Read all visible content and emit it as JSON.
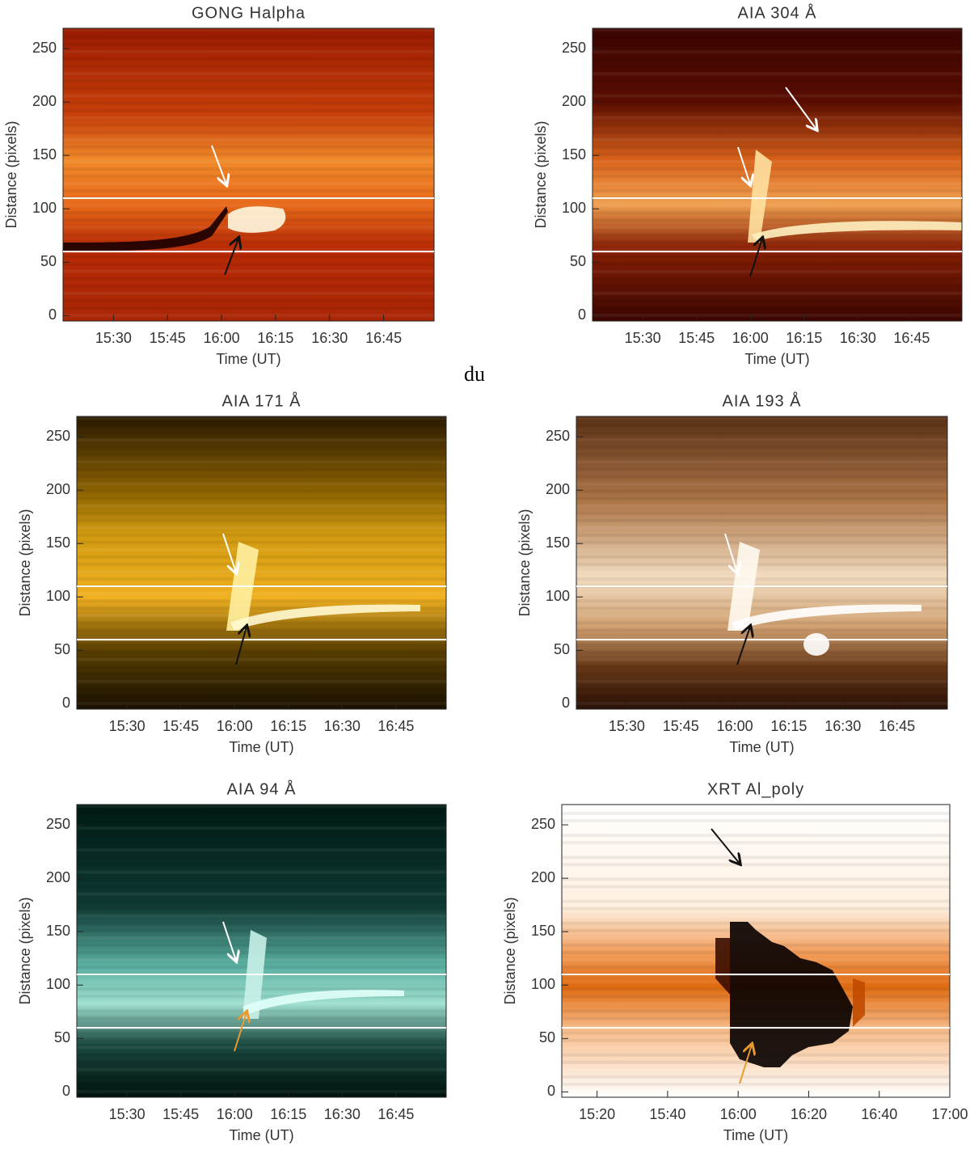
{
  "caption": "du",
  "chart_data": [
    {
      "type": "heatmap",
      "title": "GONG Halpha",
      "xlabel": "Time (UT)",
      "ylabel": "Distance (pixels)",
      "xlim": [
        "15:16",
        "16:59"
      ],
      "xticks": [
        "15:30",
        "15:45",
        "16:00",
        "16:15",
        "16:30",
        "16:45"
      ],
      "ylim": [
        -5,
        269
      ],
      "yticks": [
        0,
        50,
        100,
        150,
        200,
        250
      ],
      "hlines": [
        60,
        110
      ],
      "hline_color": "#ffffff"
    },
    {
      "type": "heatmap",
      "title": "AIA 304 Å",
      "xlabel": "Time (UT)",
      "ylabel": "Distance (pixels)",
      "xlim": [
        "15:16",
        "16:59"
      ],
      "xticks": [
        "15:30",
        "15:45",
        "16:00",
        "16:15",
        "16:30",
        "16:45"
      ],
      "ylim": [
        -5,
        269
      ],
      "yticks": [
        0,
        50,
        100,
        150,
        200,
        250
      ],
      "hlines": [
        60,
        110
      ],
      "hline_color": "#ffffff"
    },
    {
      "type": "heatmap",
      "title": "AIA 171 Å",
      "xlabel": "Time (UT)",
      "ylabel": "Distance (pixels)",
      "xlim": [
        "15:16",
        "16:59"
      ],
      "xticks": [
        "15:30",
        "15:45",
        "16:00",
        "16:15",
        "16:30",
        "16:45"
      ],
      "ylim": [
        -5,
        269
      ],
      "yticks": [
        0,
        50,
        100,
        150,
        200,
        250
      ],
      "hlines": [
        60,
        110
      ],
      "hline_color": "#ffffff"
    },
    {
      "type": "heatmap",
      "title": "AIA 193 Å",
      "xlabel": "Time (UT)",
      "ylabel": "Distance (pixels)",
      "xlim": [
        "15:16",
        "16:59"
      ],
      "xticks": [
        "15:30",
        "15:45",
        "16:00",
        "16:15",
        "16:30",
        "16:45"
      ],
      "ylim": [
        -5,
        269
      ],
      "yticks": [
        0,
        50,
        100,
        150,
        200,
        250
      ],
      "hlines": [
        60,
        110
      ],
      "hline_color": "#ffffff"
    },
    {
      "type": "heatmap",
      "title": "AIA 94 Å",
      "xlabel": "Time (UT)",
      "ylabel": "Distance (pixels)",
      "xlim": [
        "15:16",
        "16:59"
      ],
      "xticks": [
        "15:30",
        "15:45",
        "16:00",
        "16:15",
        "16:30",
        "16:45"
      ],
      "ylim": [
        -5,
        269
      ],
      "yticks": [
        0,
        50,
        100,
        150,
        200,
        250
      ],
      "hlines": [
        60,
        110
      ],
      "hline_color": "#ffffff"
    },
    {
      "type": "heatmap",
      "title": "XRT Al_poly",
      "xlabel": "Time (UT)",
      "ylabel": "Distance (pixels)",
      "xlim": [
        "15:10",
        "17:00"
      ],
      "xticks": [
        "15:20",
        "15:40",
        "16:00",
        "16:20",
        "16:40",
        "17:00"
      ],
      "ylim": [
        -5,
        269
      ],
      "yticks": [
        0,
        50,
        100,
        150,
        200,
        250
      ],
      "hlines": [
        60,
        110
      ],
      "hline_color": "#ffffff"
    }
  ]
}
